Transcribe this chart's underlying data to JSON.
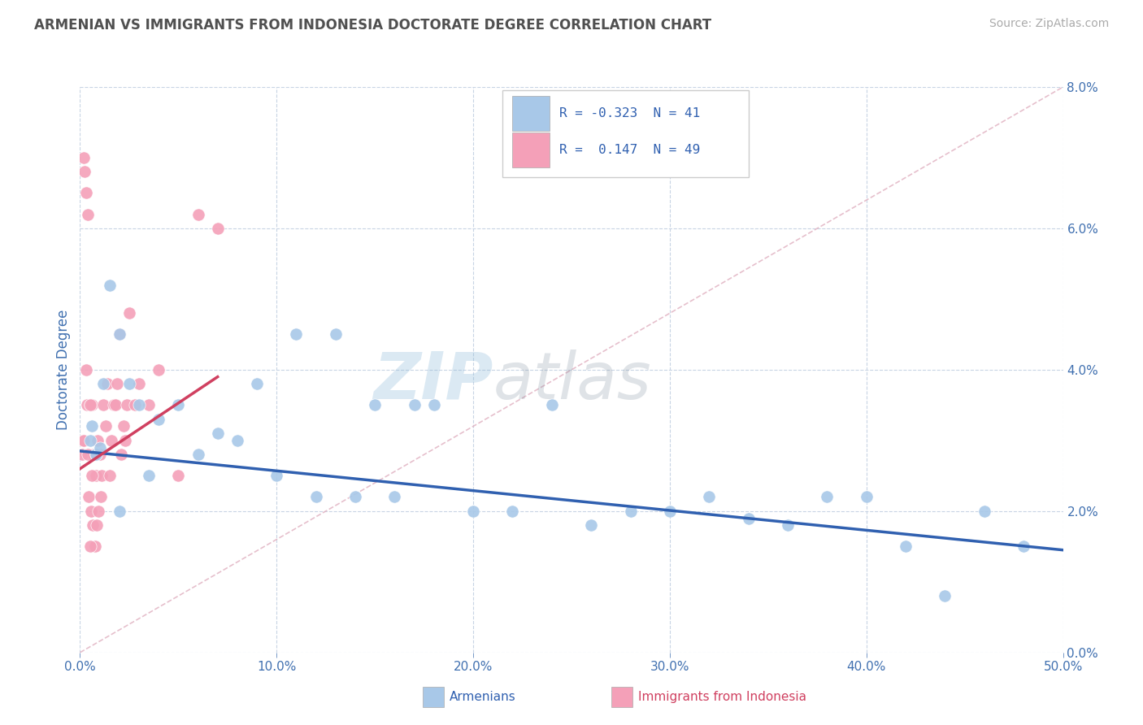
{
  "title": "ARMENIAN VS IMMIGRANTS FROM INDONESIA DOCTORATE DEGREE CORRELATION CHART",
  "source_text": "Source: ZipAtlas.com",
  "ylabel": "Doctorate Degree",
  "xlim": [
    0.0,
    50.0
  ],
  "ylim": [
    0.0,
    8.0
  ],
  "xticks": [
    0.0,
    10.0,
    20.0,
    30.0,
    40.0,
    50.0
  ],
  "yticks": [
    0.0,
    2.0,
    4.0,
    6.0,
    8.0
  ],
  "armenian_color": "#a8c8e8",
  "indonesia_color": "#f4a0b8",
  "armenian_line_color": "#3060b0",
  "indonesia_line_color": "#d04060",
  "diagonal_color": "#e0b0c0",
  "legend_line1": "R = -0.323  N = 41",
  "legend_line2": "R =  0.147  N = 49",
  "label_armenian": "Armenians",
  "label_indonesia": "Immigrants from Indonesia",
  "watermark_zip": "ZIP",
  "watermark_atlas": "atlas",
  "title_color": "#505050",
  "axis_label_color": "#4070b0",
  "tick_color": "#4070b0",
  "grid_color": "#c8d4e4",
  "background_color": "#ffffff",
  "armenian_x": [
    0.5,
    0.8,
    1.0,
    1.5,
    2.0,
    2.5,
    3.0,
    4.0,
    5.0,
    6.0,
    7.0,
    8.0,
    9.0,
    10.0,
    11.0,
    12.0,
    13.0,
    14.0,
    15.0,
    16.0,
    17.0,
    18.0,
    20.0,
    22.0,
    24.0,
    26.0,
    28.0,
    30.0,
    32.0,
    34.0,
    36.0,
    38.0,
    40.0,
    42.0,
    44.0,
    46.0,
    48.0,
    3.5,
    2.0,
    1.2,
    0.6
  ],
  "armenian_y": [
    3.0,
    2.8,
    2.9,
    5.2,
    4.5,
    3.8,
    3.5,
    3.3,
    3.5,
    2.8,
    3.1,
    3.0,
    3.8,
    2.5,
    4.5,
    2.2,
    4.5,
    2.2,
    3.5,
    2.2,
    3.5,
    3.5,
    2.0,
    2.0,
    3.5,
    1.8,
    2.0,
    2.0,
    2.2,
    1.9,
    1.8,
    2.2,
    2.2,
    1.5,
    0.8,
    2.0,
    1.5,
    2.5,
    2.0,
    3.8,
    3.2
  ],
  "indonesia_x": [
    0.1,
    0.15,
    0.2,
    0.25,
    0.3,
    0.35,
    0.4,
    0.45,
    0.5,
    0.55,
    0.6,
    0.65,
    0.7,
    0.75,
    0.8,
    0.85,
    0.9,
    0.95,
    1.0,
    1.05,
    1.1,
    1.2,
    1.3,
    1.4,
    1.5,
    1.6,
    1.7,
    1.8,
    1.9,
    2.0,
    2.1,
    2.2,
    2.3,
    2.4,
    2.5,
    2.8,
    3.0,
    3.5,
    4.0,
    5.0,
    6.0,
    7.0,
    0.3,
    0.4,
    0.5,
    0.6,
    0.2,
    0.8,
    0.5
  ],
  "indonesia_y": [
    2.8,
    3.0,
    7.0,
    6.8,
    6.5,
    3.5,
    6.2,
    2.2,
    3.5,
    2.0,
    3.5,
    1.8,
    2.8,
    1.5,
    2.5,
    1.8,
    3.0,
    2.0,
    2.8,
    2.2,
    2.5,
    3.5,
    3.2,
    3.8,
    2.5,
    3.0,
    3.5,
    3.5,
    3.8,
    4.5,
    2.8,
    3.2,
    3.0,
    3.5,
    4.8,
    3.5,
    3.8,
    3.5,
    4.0,
    2.5,
    6.2,
    6.0,
    4.0,
    2.8,
    3.5,
    2.5,
    3.0,
    2.8,
    1.5
  ],
  "armenian_trend_x": [
    0.0,
    50.0
  ],
  "armenian_trend_y": [
    2.85,
    1.45
  ],
  "indonesia_trend_x": [
    0.0,
    7.0
  ],
  "indonesia_trend_y": [
    2.6,
    3.9
  ]
}
